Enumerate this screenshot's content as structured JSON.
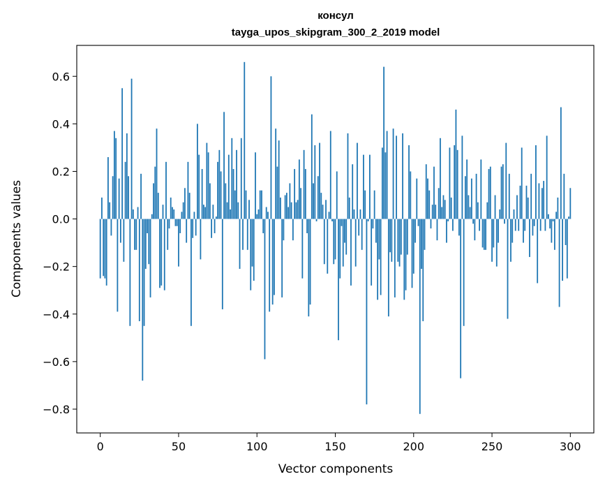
{
  "chart_data": {
    "type": "bar",
    "title": "консул",
    "subtitle": "tayga_upos_skipgram_300_2_2019 model",
    "xlabel": "Vector components",
    "ylabel": "Components values",
    "xlim": [
      -15,
      315
    ],
    "ylim": [
      -0.9,
      0.73
    ],
    "xticks": [
      0,
      50,
      100,
      150,
      200,
      250,
      300
    ],
    "yticks": [
      -0.8,
      -0.6,
      -0.4,
      -0.2,
      0.0,
      0.2,
      0.4,
      0.6
    ],
    "ytick_labels": [
      "−0.8",
      "−0.6",
      "−0.4",
      "−0.2",
      "0.0",
      "0.2",
      "0.4",
      "0.6"
    ],
    "xtick_labels": [
      "0",
      "50",
      "100",
      "150",
      "200",
      "250",
      "300"
    ],
    "bar_color": "#1f77b4",
    "values": [
      -0.25,
      0.09,
      -0.24,
      -0.25,
      -0.28,
      0.26,
      0.07,
      -0.07,
      0.18,
      0.37,
      0.34,
      -0.39,
      0.17,
      -0.1,
      0.55,
      -0.18,
      0.24,
      0.36,
      0.18,
      -0.45,
      0.59,
      0.04,
      -0.13,
      -0.13,
      0.05,
      -0.43,
      0.19,
      -0.68,
      -0.45,
      -0.21,
      -0.06,
      -0.19,
      -0.33,
      0.02,
      0.15,
      0.22,
      0.38,
      0.11,
      -0.29,
      -0.28,
      0.06,
      -0.3,
      0.24,
      -0.13,
      -0.04,
      0.09,
      0.05,
      0.04,
      -0.03,
      -0.03,
      -0.2,
      -0.06,
      0.03,
      0.07,
      0.13,
      -0.1,
      0.24,
      0.11,
      -0.45,
      -0.08,
      0.03,
      -0.07,
      0.4,
      0.27,
      -0.17,
      0.21,
      0.06,
      0.05,
      0.32,
      0.28,
      0.15,
      -0.08,
      0.06,
      -0.06,
      0.01,
      0.24,
      0.29,
      0.2,
      -0.38,
      0.45,
      0.15,
      0.07,
      0.27,
      0.04,
      0.34,
      0.21,
      0.12,
      0.29,
      0.07,
      -0.21,
      0.34,
      -0.13,
      0.66,
      0.12,
      -0.13,
      0.08,
      -0.3,
      -0.2,
      -0.26,
      0.28,
      0.02,
      0.04,
      0.12,
      0.12,
      -0.06,
      -0.59,
      0.05,
      0.03,
      -0.39,
      0.6,
      -0.36,
      -0.32,
      0.38,
      0.22,
      0.33,
      0.09,
      -0.33,
      -0.09,
      0.1,
      0.11,
      0.05,
      0.15,
      0.07,
      -0.09,
      0.21,
      0.07,
      0.08,
      0.25,
      0.13,
      -0.25,
      0.29,
      0.21,
      -0.06,
      -0.41,
      -0.36,
      0.44,
      0.15,
      0.31,
      -0.01,
      0.18,
      0.32,
      0.11,
      0.06,
      -0.19,
      0.08,
      -0.23,
      0.03,
      0.37,
      -0.01,
      -0.19,
      -0.17,
      0.2,
      -0.51,
      -0.25,
      -0.03,
      -0.2,
      -0.1,
      -0.15,
      0.36,
      0.09,
      -0.28,
      0.23,
      0.04,
      -0.2,
      0.32,
      -0.07,
      0.04,
      -0.13,
      0.27,
      0.12,
      -0.78,
      -0.01,
      0.27,
      -0.28,
      -0.04,
      0.12,
      -0.1,
      -0.34,
      -0.17,
      -0.32,
      0.3,
      0.64,
      0.28,
      0.37,
      -0.41,
      -0.14,
      -0.18,
      0.38,
      -0.33,
      0.35,
      -0.18,
      -0.2,
      -0.15,
      0.36,
      -0.34,
      -0.3,
      -0.15,
      0.31,
      0.2,
      -0.29,
      -0.23,
      -0.1,
      0.17,
      -0.03,
      -0.82,
      -0.21,
      -0.43,
      -0.13,
      0.23,
      0.17,
      0.12,
      -0.04,
      0.06,
      0.22,
      0.06,
      -0.09,
      0.13,
      0.34,
      0.05,
      0.1,
      0.08,
      -0.1,
      -0.01,
      0.3,
      0.09,
      -0.05,
      0.31,
      0.46,
      0.29,
      -0.07,
      -0.67,
      0.35,
      -0.45,
      0.18,
      0.25,
      0.1,
      0.05,
      0.17,
      -0.02,
      -0.09,
      0.19,
      0.07,
      -0.05,
      0.25,
      -0.12,
      -0.13,
      -0.13,
      0.07,
      0.21,
      0.22,
      -0.18,
      -0.12,
      0.1,
      -0.2,
      -0.1,
      0.04,
      0.22,
      0.23,
      -0.02,
      0.32,
      -0.42,
      0.19,
      -0.18,
      -0.1,
      0.04,
      -0.05,
      0.1,
      -0.05,
      0.14,
      0.3,
      -0.1,
      -0.05,
      0.14,
      0.09,
      -0.16,
      0.19,
      -0.07,
      -0.03,
      0.31,
      -0.27,
      0.15,
      -0.05,
      0.13,
      0.16,
      -0.05,
      0.35,
      0.02,
      -0.04,
      -0.1,
      -0.01,
      -0.13,
      0.03,
      0.09,
      -0.37,
      0.47,
      -0.26,
      0.19,
      -0.11,
      -0.25,
      0.01,
      0.13
    ]
  }
}
